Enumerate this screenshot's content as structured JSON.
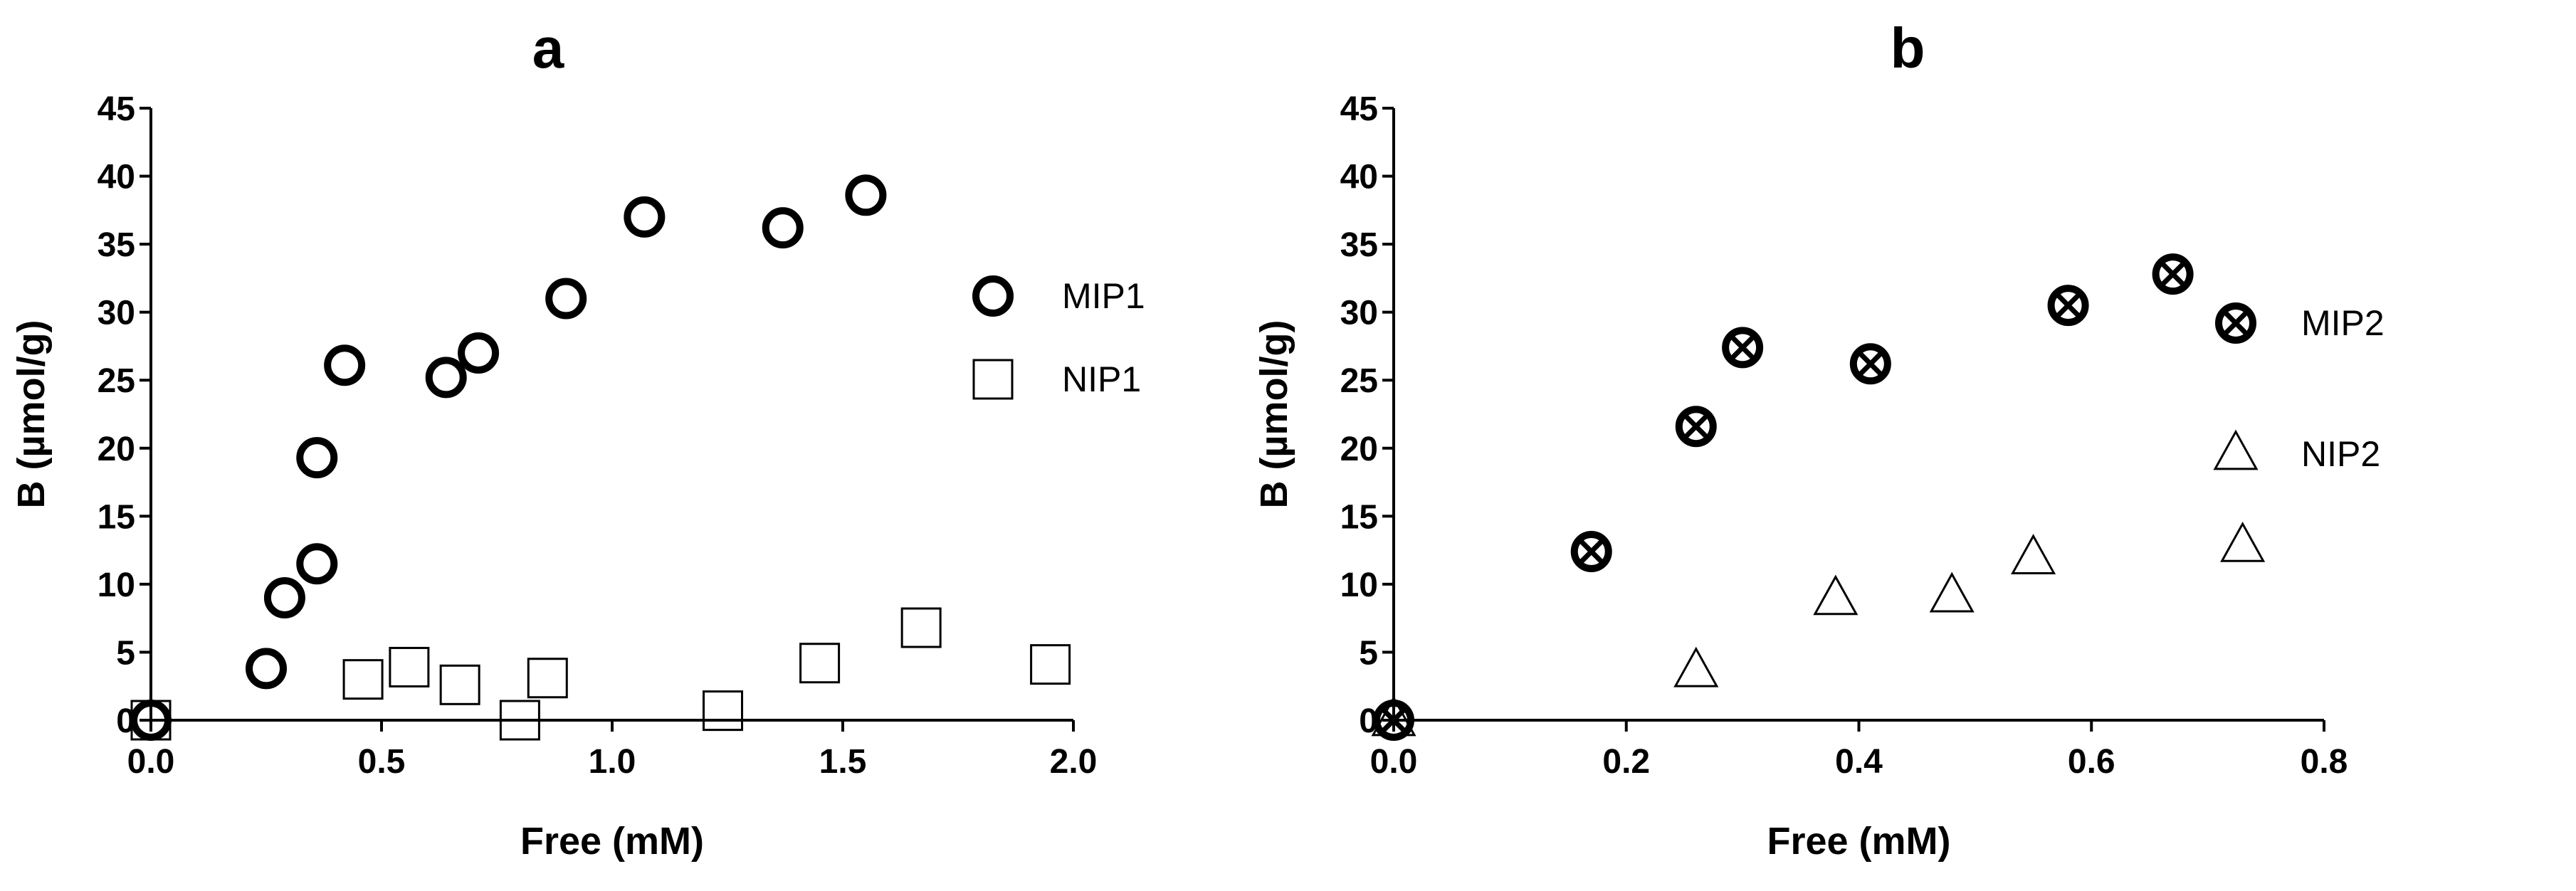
{
  "chart_data": [
    {
      "type": "scatter",
      "title": "a",
      "xlabel": "Free (mM)",
      "ylabel": "B (µmol/g)",
      "xlim": [
        0,
        2.0
      ],
      "ylim": [
        0,
        45
      ],
      "xticks": [
        "0.0",
        "0.5",
        "1.0",
        "1.5",
        "2.0"
      ],
      "xtick_values": [
        0,
        0.5,
        1.0,
        1.5,
        2.0
      ],
      "yticks": [
        "0",
        "5",
        "10",
        "15",
        "20",
        "25",
        "30",
        "35",
        "40",
        "45"
      ],
      "ytick_values": [
        0,
        5,
        10,
        15,
        20,
        25,
        30,
        35,
        40,
        45
      ],
      "grid": false,
      "legend_position": "right",
      "series": [
        {
          "name": "MIP1",
          "marker": "circle-open-thick",
          "points": [
            [
              0.0,
              0.0
            ],
            [
              0.25,
              3.8
            ],
            [
              0.29,
              9.0
            ],
            [
              0.36,
              11.5
            ],
            [
              0.36,
              19.3
            ],
            [
              0.42,
              26.1
            ],
            [
              0.64,
              25.2
            ],
            [
              0.71,
              27.0
            ],
            [
              0.9,
              31.0
            ],
            [
              1.07,
              37.0
            ],
            [
              1.37,
              36.2
            ],
            [
              1.55,
              38.6
            ]
          ]
        },
        {
          "name": "NIP1",
          "marker": "square-open",
          "points": [
            [
              0.0,
              0.0
            ],
            [
              0.46,
              3.0
            ],
            [
              0.56,
              3.9
            ],
            [
              0.67,
              2.6
            ],
            [
              0.8,
              0.0
            ],
            [
              0.86,
              3.1
            ],
            [
              1.24,
              0.7
            ],
            [
              1.45,
              4.2
            ],
            [
              1.67,
              6.8
            ],
            [
              1.95,
              4.1
            ]
          ]
        }
      ]
    },
    {
      "type": "scatter",
      "title": "b",
      "xlabel": "Free (mM)",
      "ylabel": "B (µmol/g)",
      "xlim": [
        0,
        0.8
      ],
      "ylim": [
        0,
        45
      ],
      "xticks": [
        "0.0",
        "0.2",
        "0.4",
        "0.6",
        "0.8"
      ],
      "xtick_values": [
        0,
        0.2,
        0.4,
        0.6,
        0.8
      ],
      "yticks": [
        "0",
        "5",
        "10",
        "15",
        "20",
        "25",
        "30",
        "35",
        "40",
        "45"
      ],
      "ytick_values": [
        0,
        5,
        10,
        15,
        20,
        25,
        30,
        35,
        40,
        45
      ],
      "grid": false,
      "legend_position": "right",
      "series": [
        {
          "name": "MIP2",
          "marker": "circle-cross",
          "points": [
            [
              0.0,
              0.0
            ],
            [
              0.17,
              12.4
            ],
            [
              0.26,
              21.6
            ],
            [
              0.3,
              27.4
            ],
            [
              0.41,
              26.2
            ],
            [
              0.58,
              30.5
            ],
            [
              0.67,
              32.8
            ]
          ]
        },
        {
          "name": "NIP2",
          "marker": "triangle-open",
          "points": [
            [
              0.0,
              0.0
            ],
            [
              0.26,
              3.6
            ],
            [
              0.38,
              8.9
            ],
            [
              0.48,
              9.1
            ],
            [
              0.55,
              11.9
            ],
            [
              0.73,
              12.8
            ]
          ]
        }
      ]
    }
  ]
}
